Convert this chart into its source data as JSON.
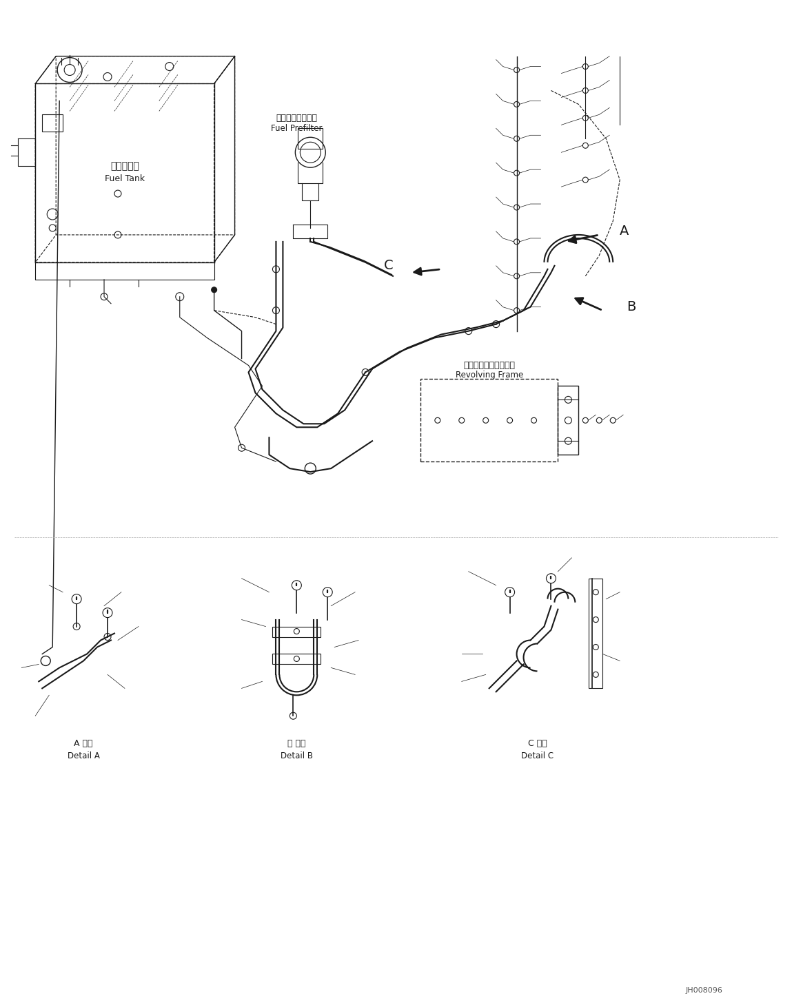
{
  "bg_color": "#ffffff",
  "line_color": "#1a1a1a",
  "title_text": "",
  "part_id": "JH008096",
  "labels": {
    "fuel_tank_jp": "燃料タンク",
    "fuel_tank_en": "Fuel Tank",
    "fuel_prefilter_jp": "燃料プレフィルタ",
    "fuel_prefilter_en": "Fuel Prefilter",
    "revolving_frame_jp": "レボルビングフレーム",
    "revolving_frame_en": "Revolving Frame",
    "detail_a_jp": "A 詳細",
    "detail_a_en": "Detail A",
    "detail_b_jp": "日 詳細",
    "detail_b_en": "Detail B",
    "detail_c_jp": "C 詳細",
    "detail_c_en": "Detail C",
    "label_A": "A",
    "label_B": "B",
    "label_C": "C"
  },
  "figsize": [
    11.49,
    14.62
  ],
  "dpi": 100
}
